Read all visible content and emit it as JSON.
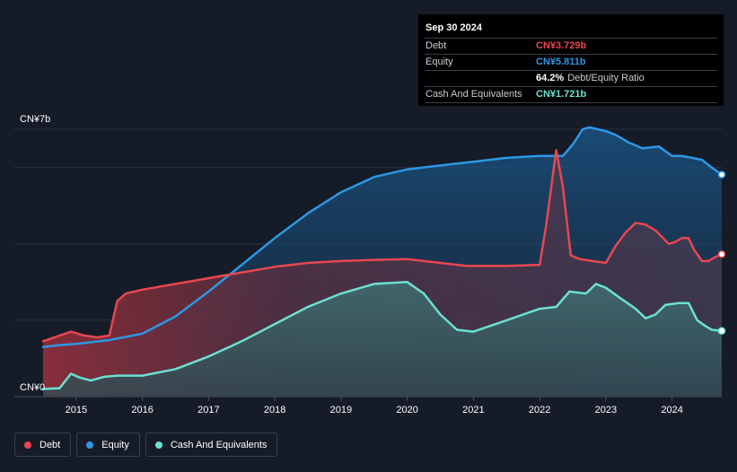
{
  "tooltip": {
    "date": "Sep 30 2024",
    "rows": [
      {
        "label": "Debt",
        "value": "CN¥3.729b",
        "color": "#e8474f"
      },
      {
        "label": "Equity",
        "value": "CN¥5.811b",
        "color": "#2d97e5"
      },
      {
        "label": "",
        "value": "64.2%",
        "sub": "Debt/Equity Ratio",
        "color": "#ffffff"
      },
      {
        "label": "Cash And Equivalents",
        "value": "CN¥1.721b",
        "color": "#6ce0d3"
      }
    ]
  },
  "legend": [
    {
      "label": "Debt",
      "color": "#e8474f"
    },
    {
      "label": "Equity",
      "color": "#2d97e5"
    },
    {
      "label": "Cash And Equivalents",
      "color": "#6ce0d3"
    }
  ],
  "chart_data": {
    "type": "area",
    "title": "",
    "ylabel": "",
    "xlabel": "",
    "y_unit_label_top": "CN¥7b",
    "y_unit_label_bottom": "CN¥0",
    "ylim": [
      0,
      7
    ],
    "xlim": [
      2014.5,
      2024.75
    ],
    "x_ticks": [
      "2015",
      "2016",
      "2017",
      "2018",
      "2019",
      "2020",
      "2021",
      "2022",
      "2023",
      "2024"
    ],
    "x_tick_values": [
      2015,
      2016,
      2017,
      2018,
      2019,
      2020,
      2021,
      2022,
      2023,
      2024
    ],
    "gridlines_y": [
      0,
      2,
      4,
      6,
      7
    ],
    "series": [
      {
        "name": "Debt",
        "color": "#e8474f",
        "points": [
          [
            2014.5,
            1.45
          ],
          [
            2014.75,
            1.6
          ],
          [
            2014.92,
            1.7
          ],
          [
            2015.12,
            1.6
          ],
          [
            2015.32,
            1.55
          ],
          [
            2015.5,
            1.6
          ],
          [
            2015.62,
            2.5
          ],
          [
            2015.75,
            2.7
          ],
          [
            2016.0,
            2.8
          ],
          [
            2016.5,
            2.95
          ],
          [
            2017.0,
            3.1
          ],
          [
            2017.5,
            3.25
          ],
          [
            2018.0,
            3.4
          ],
          [
            2018.5,
            3.5
          ],
          [
            2019.0,
            3.55
          ],
          [
            2019.5,
            3.58
          ],
          [
            2020.0,
            3.6
          ],
          [
            2020.25,
            3.55
          ],
          [
            2020.5,
            3.5
          ],
          [
            2020.9,
            3.42
          ],
          [
            2021.5,
            3.42
          ],
          [
            2022.0,
            3.45
          ],
          [
            2022.1,
            4.5
          ],
          [
            2022.25,
            6.45
          ],
          [
            2022.35,
            5.5
          ],
          [
            2022.47,
            3.7
          ],
          [
            2022.6,
            3.6
          ],
          [
            2022.8,
            3.55
          ],
          [
            2023.0,
            3.5
          ],
          [
            2023.15,
            3.95
          ],
          [
            2023.3,
            4.3
          ],
          [
            2023.45,
            4.55
          ],
          [
            2023.6,
            4.5
          ],
          [
            2023.75,
            4.35
          ],
          [
            2023.95,
            4.0
          ],
          [
            2024.05,
            4.05
          ],
          [
            2024.15,
            4.15
          ],
          [
            2024.25,
            4.15
          ],
          [
            2024.33,
            3.85
          ],
          [
            2024.45,
            3.55
          ],
          [
            2024.55,
            3.55
          ],
          [
            2024.65,
            3.65
          ],
          [
            2024.75,
            3.729
          ]
        ]
      },
      {
        "name": "Equity",
        "color": "#2d97e5",
        "points": [
          [
            2014.5,
            1.3
          ],
          [
            2014.75,
            1.35
          ],
          [
            2015.0,
            1.38
          ],
          [
            2015.5,
            1.48
          ],
          [
            2016.0,
            1.65
          ],
          [
            2016.5,
            2.1
          ],
          [
            2017.0,
            2.75
          ],
          [
            2017.5,
            3.45
          ],
          [
            2018.0,
            4.15
          ],
          [
            2018.5,
            4.8
          ],
          [
            2019.0,
            5.35
          ],
          [
            2019.5,
            5.75
          ],
          [
            2020.0,
            5.95
          ],
          [
            2020.5,
            6.05
          ],
          [
            2021.0,
            6.15
          ],
          [
            2021.5,
            6.25
          ],
          [
            2022.0,
            6.3
          ],
          [
            2022.35,
            6.3
          ],
          [
            2022.5,
            6.6
          ],
          [
            2022.65,
            7.0
          ],
          [
            2022.75,
            7.05
          ],
          [
            2023.0,
            6.95
          ],
          [
            2023.15,
            6.85
          ],
          [
            2023.35,
            6.65
          ],
          [
            2023.55,
            6.5
          ],
          [
            2023.8,
            6.55
          ],
          [
            2024.0,
            6.3
          ],
          [
            2024.15,
            6.3
          ],
          [
            2024.3,
            6.25
          ],
          [
            2024.45,
            6.2
          ],
          [
            2024.6,
            6.0
          ],
          [
            2024.75,
            5.811
          ]
        ]
      },
      {
        "name": "Cash And Equivalents",
        "color": "#6ce0d3",
        "points": [
          [
            2014.5,
            0.2
          ],
          [
            2014.75,
            0.22
          ],
          [
            2014.92,
            0.6
          ],
          [
            2015.05,
            0.5
          ],
          [
            2015.22,
            0.42
          ],
          [
            2015.42,
            0.52
          ],
          [
            2015.62,
            0.55
          ],
          [
            2016.0,
            0.55
          ],
          [
            2016.5,
            0.72
          ],
          [
            2017.0,
            1.05
          ],
          [
            2017.5,
            1.45
          ],
          [
            2018.0,
            1.9
          ],
          [
            2018.5,
            2.35
          ],
          [
            2019.0,
            2.7
          ],
          [
            2019.5,
            2.95
          ],
          [
            2020.0,
            3.0
          ],
          [
            2020.25,
            2.7
          ],
          [
            2020.5,
            2.15
          ],
          [
            2020.75,
            1.75
          ],
          [
            2021.0,
            1.7
          ],
          [
            2021.5,
            2.0
          ],
          [
            2022.0,
            2.3
          ],
          [
            2022.25,
            2.35
          ],
          [
            2022.45,
            2.75
          ],
          [
            2022.7,
            2.7
          ],
          [
            2022.85,
            2.95
          ],
          [
            2023.0,
            2.85
          ],
          [
            2023.2,
            2.6
          ],
          [
            2023.45,
            2.3
          ],
          [
            2023.6,
            2.05
          ],
          [
            2023.75,
            2.15
          ],
          [
            2023.9,
            2.4
          ],
          [
            2024.1,
            2.45
          ],
          [
            2024.25,
            2.45
          ],
          [
            2024.38,
            2.0
          ],
          [
            2024.5,
            1.85
          ],
          [
            2024.6,
            1.75
          ],
          [
            2024.75,
            1.721
          ]
        ]
      }
    ]
  }
}
